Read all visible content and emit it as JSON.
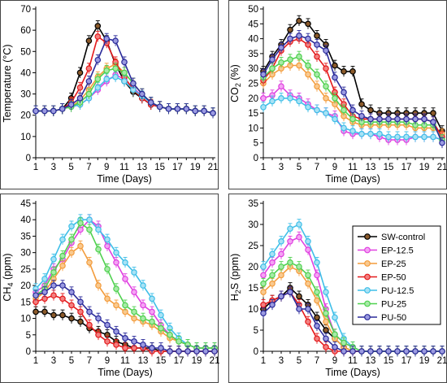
{
  "legend": {
    "entries": [
      "SW-control",
      "EP-12.5",
      "EP-25",
      "EP-50",
      "PU-12.5",
      "PU-25",
      "PU-50"
    ],
    "placement": "right of bottom-right panel"
  },
  "series_styles": [
    {
      "name": "SW-control",
      "line": "#000000",
      "fill": "#8b5a2b"
    },
    {
      "name": "EP-12.5",
      "line": "#e040e0",
      "fill": "#f4a3f4"
    },
    {
      "name": "EP-25",
      "line": "#f39c3c",
      "fill": "#f9c98f"
    },
    {
      "name": "EP-50",
      "line": "#e41a1c",
      "fill": "#f28080"
    },
    {
      "name": "PU-12.5",
      "line": "#3fbfe8",
      "fill": "#a8e2f5"
    },
    {
      "name": "PU-25",
      "line": "#4fd14f",
      "fill": "#a7eaa7"
    },
    {
      "name": "PU-50",
      "line": "#2b2b9a",
      "fill": "#9a9ae0"
    }
  ],
  "chart_data": [
    {
      "type": "line",
      "id": "temperature",
      "title": "",
      "xlabel": "Time (Days)",
      "ylabel": "Temperature (°C)",
      "xlim": [
        1,
        21
      ],
      "x_ticks": [
        "1",
        "3",
        "5",
        "7",
        "9",
        "11",
        "13",
        "15",
        "17",
        "19",
        "21"
      ],
      "ylim": [
        0,
        70
      ],
      "y_ticks": [
        "0",
        "10",
        "20",
        "30",
        "40",
        "50",
        "60",
        "70"
      ],
      "grid": false,
      "x": [
        1,
        2,
        3,
        4,
        5,
        6,
        7,
        8,
        9,
        10,
        11,
        12,
        13,
        14,
        15,
        16,
        17,
        18,
        19,
        20,
        21
      ],
      "series": [
        {
          "name": "SW-control",
          "values": [
            22,
            22,
            22,
            23,
            28,
            40,
            55,
            62,
            55,
            44,
            36,
            31,
            28,
            25,
            24,
            23,
            23,
            23,
            22,
            22,
            21
          ]
        },
        {
          "name": "EP-12.5",
          "values": [
            22,
            22,
            22,
            23,
            24,
            25,
            28,
            32,
            36,
            39,
            37,
            33,
            29,
            26,
            24,
            23,
            23,
            23,
            22,
            22,
            21
          ]
        },
        {
          "name": "EP-25",
          "values": [
            22,
            22,
            22,
            23,
            24,
            27,
            32,
            38,
            42,
            44,
            40,
            35,
            30,
            26,
            24,
            23,
            23,
            23,
            22,
            22,
            21
          ]
        },
        {
          "name": "EP-50",
          "values": [
            22,
            22,
            22,
            23,
            26,
            33,
            42,
            57,
            54,
            45,
            38,
            32,
            28,
            25,
            24,
            23,
            23,
            23,
            22,
            22,
            21
          ]
        },
        {
          "name": "PU-12.5",
          "values": [
            22,
            22,
            22,
            23,
            24,
            25,
            28,
            33,
            37,
            38,
            36,
            32,
            29,
            26,
            24,
            23,
            23,
            23,
            22,
            22,
            21
          ]
        },
        {
          "name": "PU-25",
          "values": [
            22,
            22,
            22,
            23,
            24,
            26,
            30,
            37,
            41,
            42,
            40,
            35,
            30,
            26,
            24,
            23,
            23,
            23,
            22,
            22,
            21
          ]
        },
        {
          "name": "PU-50",
          "values": [
            22,
            22,
            22,
            23,
            25,
            28,
            36,
            46,
            56,
            55,
            45,
            35,
            30,
            26,
            24,
            23,
            23,
            23,
            22,
            22,
            21
          ]
        }
      ]
    },
    {
      "type": "line",
      "id": "co2",
      "title": "",
      "xlabel": "Time (Days)",
      "ylabel": "CO2 (%)",
      "xlim": [
        1,
        21
      ],
      "x_ticks": [
        "1",
        "3",
        "5",
        "7",
        "9",
        "11",
        "13",
        "15",
        "17",
        "19",
        "21"
      ],
      "ylim": [
        0,
        50
      ],
      "y_ticks": [
        "0",
        "5",
        "10",
        "15",
        "20",
        "25",
        "30",
        "35",
        "40",
        "45",
        "50"
      ],
      "grid": false,
      "x": [
        1,
        2,
        3,
        4,
        5,
        6,
        7,
        8,
        9,
        10,
        11,
        12,
        13,
        14,
        15,
        16,
        17,
        18,
        19,
        20,
        21
      ],
      "series": [
        {
          "name": "SW-control",
          "values": [
            29,
            34,
            38,
            43,
            46,
            45,
            41,
            38,
            31,
            29,
            29,
            18,
            16,
            15,
            15,
            15,
            15,
            15,
            15,
            15,
            9
          ]
        },
        {
          "name": "EP-12.5",
          "values": [
            20,
            21,
            24,
            21,
            20,
            18,
            16,
            15,
            14,
            9,
            8,
            8,
            8,
            7,
            6,
            6,
            6,
            7,
            7,
            7,
            6
          ]
        },
        {
          "name": "EP-25",
          "values": [
            25,
            28,
            30,
            31,
            31,
            28,
            24,
            20,
            18,
            14,
            12,
            11,
            11,
            11,
            11,
            11,
            11,
            10,
            10,
            10,
            8
          ]
        },
        {
          "name": "EP-50",
          "values": [
            26,
            30,
            36,
            39,
            40,
            38,
            34,
            30,
            22,
            18,
            14,
            13,
            13,
            13,
            13,
            13,
            13,
            13,
            13,
            12,
            7
          ]
        },
        {
          "name": "PU-12.5",
          "values": [
            17,
            19,
            20,
            20,
            19,
            17,
            16,
            15,
            13,
            10,
            9,
            8,
            8,
            8,
            7,
            7,
            7,
            7,
            7,
            7,
            6
          ]
        },
        {
          "name": "PU-25",
          "values": [
            27,
            30,
            32,
            33,
            34,
            31,
            28,
            24,
            20,
            16,
            13,
            12,
            12,
            12,
            12,
            12,
            12,
            11,
            11,
            11,
            6
          ]
        },
        {
          "name": "PU-50",
          "values": [
            28,
            33,
            37,
            40,
            41,
            40,
            38,
            36,
            27,
            22,
            16,
            14,
            13,
            13,
            13,
            13,
            13,
            13,
            13,
            12,
            5
          ]
        }
      ]
    },
    {
      "type": "line",
      "id": "ch4",
      "title": "",
      "xlabel": "Time (Days)",
      "ylabel": "CH4 (ppm)",
      "xlim": [
        1,
        21
      ],
      "x_ticks": [
        "1",
        "3",
        "5",
        "7",
        "9",
        "11",
        "13",
        "15",
        "17",
        "19",
        "21"
      ],
      "ylim": [
        0,
        45
      ],
      "y_ticks": [
        "0",
        "5",
        "10",
        "15",
        "20",
        "25",
        "30",
        "35",
        "40",
        "45"
      ],
      "grid": false,
      "x": [
        1,
        2,
        3,
        4,
        5,
        6,
        7,
        8,
        9,
        10,
        11,
        12,
        13,
        14,
        15,
        16,
        17,
        18,
        19,
        20,
        21
      ],
      "series": [
        {
          "name": "SW-control",
          "values": [
            12,
            12,
            11,
            11,
            10,
            9,
            7,
            6,
            5,
            3,
            2,
            1,
            1,
            1,
            0,
            0,
            0,
            0,
            0,
            0,
            0
          ]
        },
        {
          "name": "EP-12.5",
          "values": [
            18,
            20,
            25,
            28,
            33,
            37,
            40,
            38,
            32,
            27,
            22,
            18,
            14,
            12,
            8,
            5,
            3,
            2,
            1,
            1,
            1
          ]
        },
        {
          "name": "EP-25",
          "values": [
            16,
            18,
            22,
            26,
            30,
            32,
            27,
            20,
            16,
            14,
            12,
            10,
            9,
            8,
            6,
            4,
            3,
            2,
            1,
            1,
            1
          ]
        },
        {
          "name": "EP-50",
          "values": [
            15,
            16,
            17,
            16,
            14,
            12,
            8,
            5,
            3,
            2,
            1,
            1,
            1,
            0,
            0,
            0,
            0,
            0,
            0,
            0,
            0
          ]
        },
        {
          "name": "PU-12.5",
          "values": [
            19,
            22,
            28,
            34,
            38,
            40,
            40,
            37,
            34,
            30,
            27,
            24,
            20,
            16,
            11,
            7,
            4,
            2,
            1,
            1,
            1
          ]
        },
        {
          "name": "PU-25",
          "values": [
            17,
            19,
            24,
            29,
            34,
            39,
            37,
            31,
            25,
            19,
            14,
            12,
            10,
            9,
            7,
            5,
            3,
            2,
            1,
            1,
            1
          ]
        },
        {
          "name": "PU-50",
          "values": [
            17,
            18,
            20,
            20,
            18,
            15,
            12,
            10,
            8,
            6,
            4,
            3,
            2,
            1,
            1,
            0,
            0,
            0,
            0,
            0,
            0
          ]
        }
      ]
    },
    {
      "type": "line",
      "id": "h2s",
      "title": "",
      "xlabel": "Time (Days)",
      "ylabel": "H2S (ppm)",
      "xlim": [
        1,
        21
      ],
      "x_ticks": [
        "1",
        "3",
        "5",
        "7",
        "9",
        "11",
        "13",
        "15",
        "17",
        "19",
        "21"
      ],
      "ylim": [
        0,
        35
      ],
      "y_ticks": [
        "0",
        "5",
        "10",
        "15",
        "20",
        "25",
        "30",
        "35"
      ],
      "grid": false,
      "x": [
        1,
        2,
        3,
        4,
        5,
        6,
        7,
        8,
        9,
        10,
        11,
        12,
        13,
        14,
        15,
        16,
        17,
        18,
        19,
        20,
        21
      ],
      "series": [
        {
          "name": "SW-control",
          "values": [
            10,
            12,
            13,
            15,
            13,
            11,
            8,
            5,
            3,
            1,
            0,
            0,
            0,
            0,
            0,
            0,
            0,
            0,
            0,
            0,
            0
          ]
        },
        {
          "name": "EP-12.5",
          "values": [
            18,
            21,
            23,
            26,
            27,
            24,
            18,
            10,
            4,
            2,
            1,
            0,
            0,
            0,
            0,
            0,
            0,
            0,
            0,
            0,
            0
          ]
        },
        {
          "name": "EP-25",
          "values": [
            14,
            16,
            18,
            20,
            19,
            16,
            12,
            7,
            3,
            1,
            0,
            0,
            0,
            0,
            0,
            0,
            0,
            0,
            0,
            0,
            0
          ]
        },
        {
          "name": "EP-50",
          "values": [
            11,
            12,
            13,
            14,
            11,
            7,
            3,
            1,
            0,
            0,
            0,
            0,
            0,
            0,
            0,
            0,
            0,
            0,
            0,
            0,
            0
          ]
        },
        {
          "name": "PU-12.5",
          "values": [
            20,
            23,
            26,
            29,
            30,
            26,
            21,
            14,
            8,
            3,
            1,
            0,
            0,
            0,
            0,
            0,
            0,
            0,
            0,
            0,
            0
          ]
        },
        {
          "name": "PU-25",
          "values": [
            16,
            18,
            20,
            21,
            20,
            18,
            14,
            9,
            4,
            2,
            1,
            0,
            0,
            0,
            0,
            0,
            0,
            0,
            0,
            0,
            0
          ]
        },
        {
          "name": "PU-50",
          "values": [
            9,
            11,
            13,
            14,
            10,
            10,
            6,
            3,
            1,
            0,
            0,
            0,
            0,
            0,
            0,
            0,
            0,
            0,
            0,
            0,
            0
          ]
        }
      ]
    }
  ]
}
